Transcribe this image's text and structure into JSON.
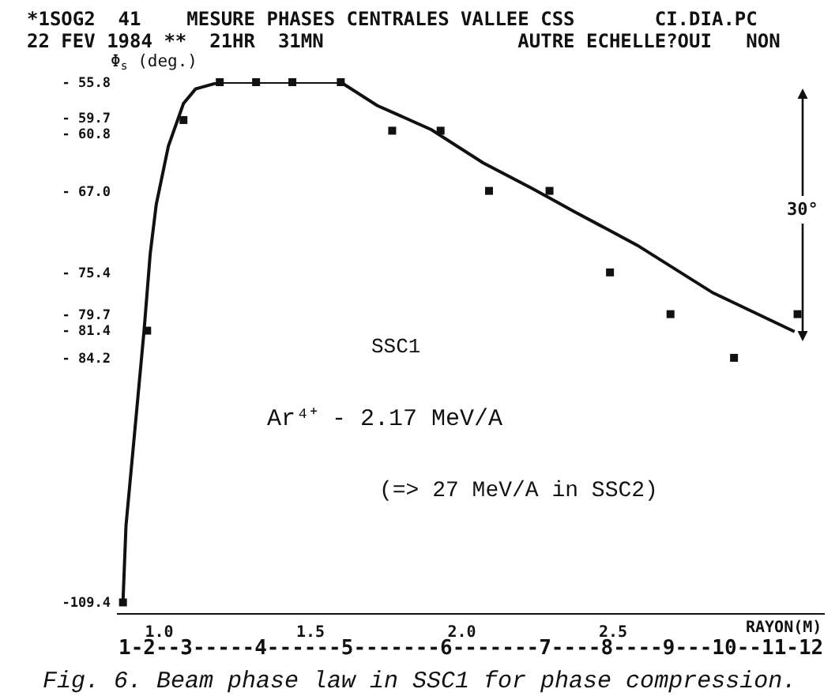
{
  "chart_data": {
    "type": "line",
    "title": "*1SOG2  41    MESURE PHASES CENTRALES VALLEE CSS       CI.DIA.PC",
    "subtitle": "22 FEV 1984 **  21HR  31MN                 AUTRE ECHELLE?OUI   NON",
    "xlabel": "RAYON(M)",
    "ylabel": "Φ$_{s}$ (deg.)",
    "annotations": [
      "SSC1",
      "Ar⁴⁺ - 2.17 MeV/A",
      "(=> 27 MeV/A in SSC2)",
      "30°",
      "1-2--3-----4------5-------6-------7----8----9---10--11-12",
      "Fig. 6. Beam phase law in SSC1 for phase compression."
    ],
    "xlim": [
      0.86,
      3.2
    ],
    "xticks": [
      {
        "value": 1.0,
        "label": "1.0"
      },
      {
        "value": 1.5,
        "label": "1.5"
      },
      {
        "value": 2.0,
        "label": "2.0"
      },
      {
        "value": 2.5,
        "label": "2.5"
      }
    ],
    "ylim": [
      -110.5,
      -55.8
    ],
    "yticks": [
      {
        "value": -55.8,
        "label": "- 55.8"
      },
      {
        "value": -59.7,
        "label": "- 59.7"
      },
      {
        "value": -60.8,
        "label": "- 60.8"
      },
      {
        "value": -67.0,
        "label": "- 67.0"
      },
      {
        "value": -75.4,
        "label": "- 75.4"
      },
      {
        "value": -79.7,
        "label": "- 79.7"
      },
      {
        "value": -81.4,
        "label": "- 81.4"
      },
      {
        "value": -84.2,
        "label": "- 84.2"
      },
      {
        "value": -109.4,
        "label": "-109.4"
      }
    ],
    "line_style": "solid",
    "marker": "square",
    "series": [
      {
        "color": "#111111",
        "marker": "none",
        "x": [
          0.88,
          0.89,
          0.92,
          0.95,
          0.97,
          0.99,
          1.03,
          1.08,
          1.12,
          1.2,
          1.32,
          1.44,
          1.52,
          1.6,
          1.72,
          1.9,
          2.07,
          2.23,
          2.37,
          2.58,
          2.83,
          3.1
        ],
        "values": [
          -109.4,
          -101.5,
          -91.4,
          -81.3,
          -73.5,
          -68.4,
          -62.4,
          -58.0,
          -56.5,
          -55.8,
          -55.8,
          -55.8,
          -55.8,
          -55.8,
          -58.2,
          -60.7,
          -64.1,
          -66.7,
          -69.1,
          -72.6,
          -77.5,
          -81.5
        ]
      },
      {
        "type": "scatter",
        "color": "#111111",
        "x": [
          0.88,
          0.96,
          1.08,
          1.2,
          1.32,
          1.44,
          1.6,
          1.77,
          1.93,
          2.09,
          2.29,
          2.49,
          2.69,
          2.9,
          3.11
        ],
        "values": [
          -109.4,
          -81.4,
          -59.7,
          -55.8,
          -55.8,
          -55.8,
          -55.8,
          -60.8,
          -60.8,
          -67.0,
          -67.0,
          -75.4,
          -79.7,
          -84.2,
          -79.7
        ]
      }
    ]
  }
}
